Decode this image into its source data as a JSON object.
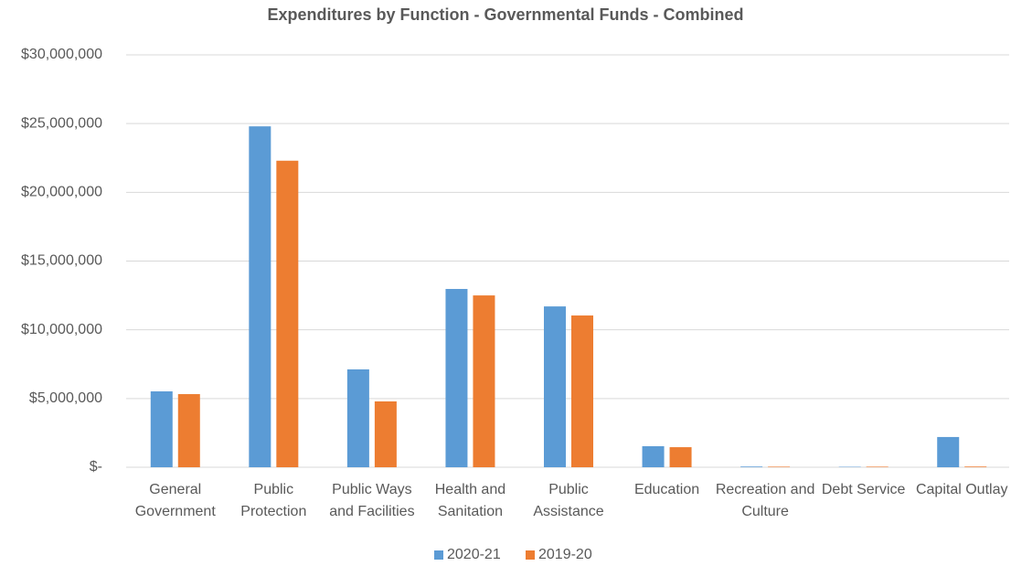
{
  "chart_data": {
    "type": "bar",
    "title": "Expenditures by Function - Governmental Funds - Combined",
    "categories": [
      "General Government",
      "Public Protection",
      "Public Ways and Facilities",
      "Health and Sanitation",
      "Public Assistance",
      "Education",
      "Recreation and Culture",
      "Debt Service",
      "Capital Outlay"
    ],
    "series": [
      {
        "name": "2020-21",
        "color": "#5b9bd5",
        "values": [
          5520000,
          24800000,
          7120000,
          12970000,
          11700000,
          1530000,
          50000,
          30000,
          2200000
        ]
      },
      {
        "name": "2019-20",
        "color": "#ed7d31",
        "values": [
          5320000,
          22300000,
          4790000,
          12500000,
          11040000,
          1460000,
          40000,
          40000,
          50000
        ]
      }
    ],
    "ylim": [
      0,
      30000000
    ],
    "yticks": [
      {
        "value": 0,
        "label": "$-"
      },
      {
        "value": 5000000,
        "label": "$5,000,000"
      },
      {
        "value": 10000000,
        "label": "$10,000,000"
      },
      {
        "value": 15000000,
        "label": "$15,000,000"
      },
      {
        "value": 20000000,
        "label": "$20,000,000"
      },
      {
        "value": 25000000,
        "label": "$25,000,000"
      },
      {
        "value": 30000000,
        "label": "$30,000,000"
      }
    ],
    "grid": true,
    "legend": "bottom"
  }
}
